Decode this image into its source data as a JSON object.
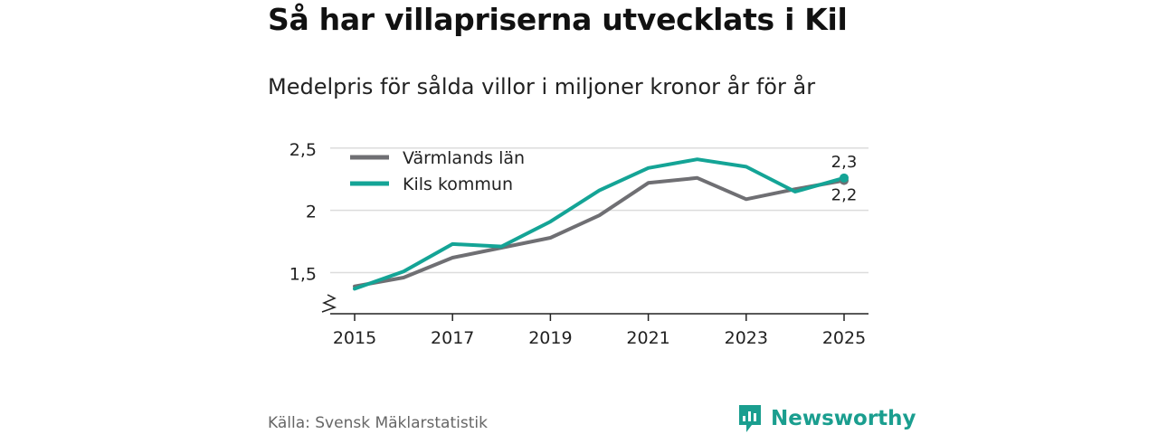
{
  "title": "Så har villapriserna utvecklats i Kil",
  "subtitle": "Medelpris för sålda villor i miljoner kronor år för år",
  "source": "Källa: Svensk Mäklarstatistik",
  "brand": "Newsworthy",
  "colors": {
    "varmland": "#6f6f73",
    "kil": "#14a496",
    "brand": "#1a9e8f"
  },
  "chart_data": {
    "type": "line",
    "x": [
      2015,
      2016,
      2017,
      2018,
      2019,
      2020,
      2021,
      2022,
      2023,
      2024,
      2025
    ],
    "x_ticks": [
      2015,
      2017,
      2019,
      2021,
      2023,
      2025
    ],
    "y_ticks": [
      {
        "v": 1.5,
        "label": "1,5"
      },
      {
        "v": 2.0,
        "label": "2"
      },
      {
        "v": 2.5,
        "label": "2,5"
      }
    ],
    "ylim": [
      1.17,
      2.6
    ],
    "axis_break": true,
    "legend_position": "top-left",
    "series": [
      {
        "name": "Värmlands län",
        "color_key": "varmland",
        "values": [
          1.39,
          1.46,
          1.62,
          1.7,
          1.78,
          1.96,
          2.22,
          2.26,
          2.09,
          2.17,
          2.24
        ],
        "end_label": "2,2"
      },
      {
        "name": "Kils kommun",
        "color_key": "kil",
        "values": [
          1.37,
          1.51,
          1.73,
          1.71,
          1.91,
          2.16,
          2.34,
          2.41,
          2.35,
          2.15,
          2.26
        ],
        "end_label": "2,3"
      }
    ]
  }
}
